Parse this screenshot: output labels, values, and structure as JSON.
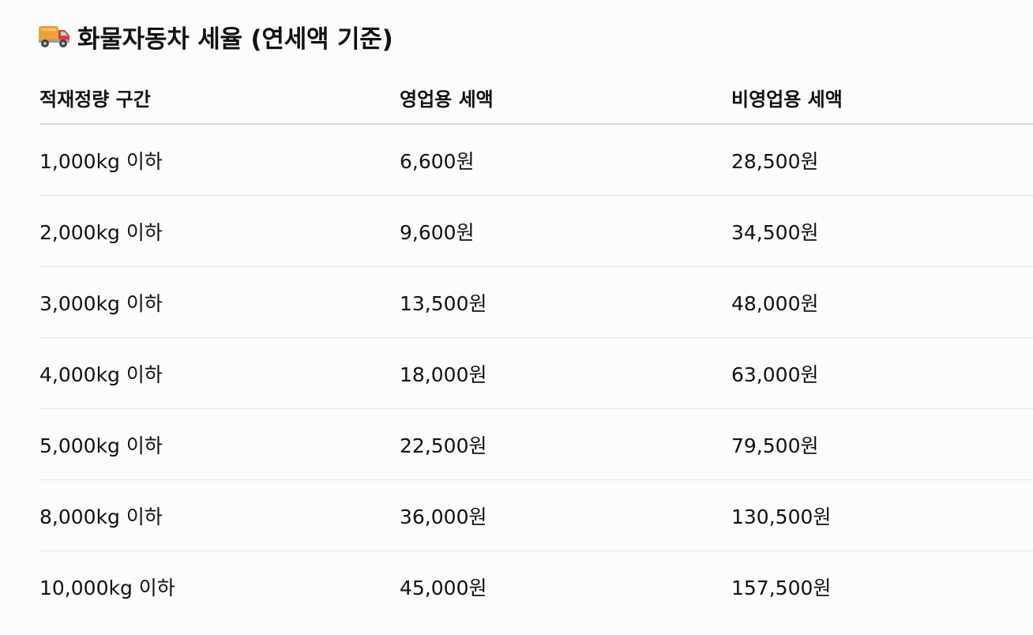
{
  "title": {
    "icon": "delivery-truck-icon",
    "text": "화물자동차 세율 (연세액 기준)"
  },
  "table": {
    "headers": [
      "적재정량 구간",
      "영업용 세액",
      "비영업용 세액"
    ],
    "rows": [
      [
        "1,000kg 이하",
        "6,600원",
        "28,500원"
      ],
      [
        "2,000kg 이하",
        "9,600원",
        "34,500원"
      ],
      [
        "3,000kg 이하",
        "13,500원",
        "48,000원"
      ],
      [
        "4,000kg 이하",
        "18,000원",
        "63,000원"
      ],
      [
        "5,000kg 이하",
        "22,500원",
        "79,500원"
      ],
      [
        "8,000kg 이하",
        "36,000원",
        "130,500원"
      ],
      [
        "10,000kg 이하",
        "45,000원",
        "157,500원"
      ]
    ]
  }
}
